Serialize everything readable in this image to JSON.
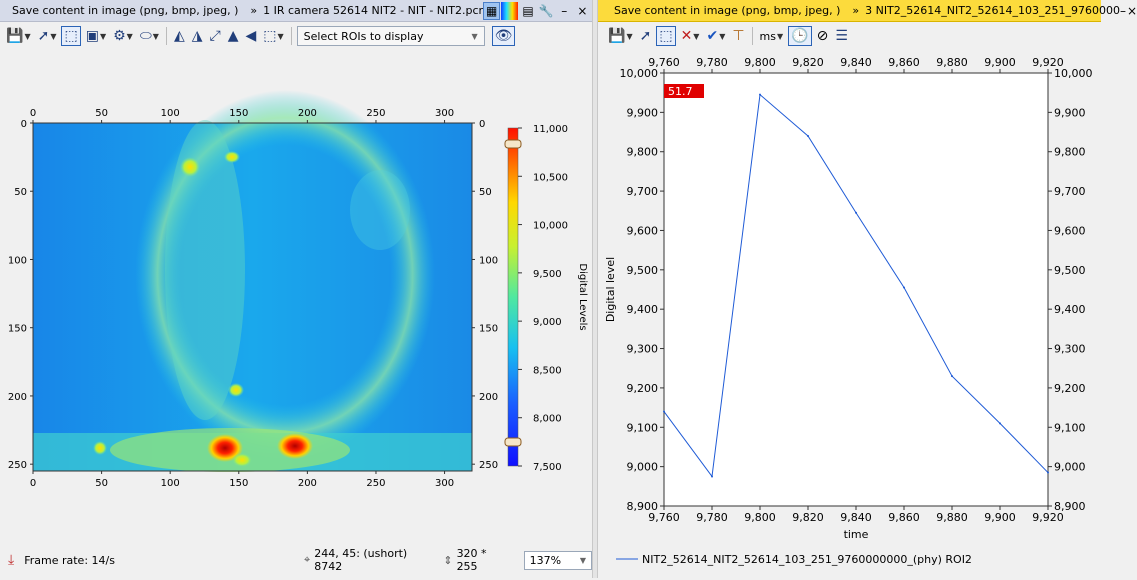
{
  "left_panel": {
    "title": {
      "save_hint": "Save content in image (png, bmp, jpeg, )",
      "separator": "»",
      "document": "1 IR camera 52614 NIT2 - NIT - NIT2.pcr",
      "icons": [
        "ir-view-icon",
        "palette-icon",
        "filmstrip-icon",
        "pin-icon",
        "minimize-icon",
        "close-icon"
      ]
    },
    "toolbar": {
      "icons": [
        "save-icon",
        "pointer-icon",
        "roi-select-icon",
        "export-icon",
        "settings-icon",
        "shape-icon",
        "flip-horizontal-icon",
        "flip-vertical-icon",
        "rotate-icon",
        "mirror-icon",
        "arrow-left-icon",
        "crop-icon"
      ],
      "roi_select": "Select ROIs to display"
    },
    "image": {
      "x_ticks": [
        "0",
        "50",
        "100",
        "150",
        "200",
        "250",
        "300"
      ],
      "y_ticks": [
        "0",
        "50",
        "100",
        "150",
        "200",
        "250"
      ],
      "colorbar_ticks": [
        "11,000",
        "10,500",
        "10,000",
        "9,500",
        "9,000",
        "8,500",
        "8,000",
        "7,500"
      ],
      "colorbar_label": "Digital Levels",
      "colors": {
        "low": "#1245ff",
        "mid": "#19b4ee",
        "high": "#ff2000"
      }
    },
    "status": {
      "frame_rate": "Frame rate: 14/s",
      "cursor_info": "244, 45: (ushort) 8742",
      "size": "320 * 255",
      "zoom": "137%"
    }
  },
  "right_panel": {
    "title": {
      "save_hint": "Save content in image (png, bmp, jpeg, )",
      "separator": "»",
      "document": "3 NIT2_52614_NIT2_52614_103_251_9760000"
    },
    "toolbar": {
      "icons": [
        "save-icon",
        "pointer-icon",
        "roi-select-icon",
        "delete-icon",
        "check-icon",
        "cursor-tool-icon",
        "time-unit-icon",
        "clock-icon",
        "no-scale-icon",
        "align-icon"
      ],
      "unit": "ms"
    },
    "marker_label": "51.7",
    "legend_entry": "NIT2_52614_NIT2_52614_103_251_9760000000_(phy) ROI2"
  },
  "chart_data": {
    "type": "line",
    "xlabel": "time",
    "ylabel": "Digital level",
    "xlim": [
      9760,
      9920
    ],
    "ylim": [
      8900,
      10000
    ],
    "x_ticks": [
      "9,760",
      "9,780",
      "9,800",
      "9,820",
      "9,840",
      "9,860",
      "9,880",
      "9,900",
      "9,920"
    ],
    "y_ticks": [
      "8,900",
      "9,000",
      "9,100",
      "9,200",
      "9,300",
      "9,400",
      "9,500",
      "9,600",
      "9,700",
      "9,800",
      "9,900",
      "10,000"
    ],
    "grid": false,
    "legend_position": "bottom",
    "series": [
      {
        "name": "NIT2_52614_NIT2_52614_103_251_9760000000_(phy) ROI2",
        "color": "#1f5bd6",
        "x": [
          9760,
          9780,
          9800,
          9820,
          9840,
          9860,
          9880,
          9900,
          9920
        ],
        "y": [
          9140,
          8975,
          9945,
          9840,
          9645,
          9455,
          9230,
          9110,
          8985
        ]
      }
    ]
  }
}
